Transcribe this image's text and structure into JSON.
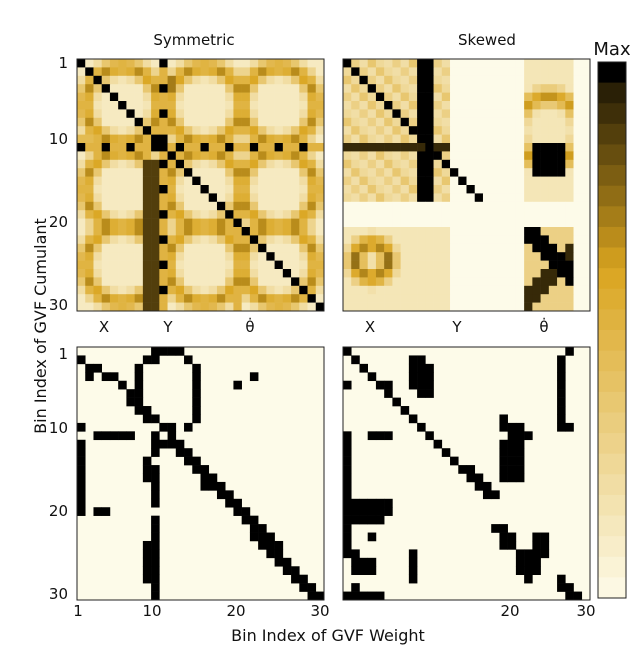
{
  "chart_data": {
    "type": "heatmap",
    "titles": [
      "Symmetric",
      "Skewed"
    ],
    "xlabel": "Bin Index of GVF Weight",
    "ylabel": "Bin Index of GVF Cumulant",
    "y_ticks": [
      "1",
      "10",
      "20",
      "30"
    ],
    "x_ticks": [
      "1",
      "10",
      "20",
      "30"
    ],
    "group_labels": [
      "X",
      "Y",
      "θ̇"
    ],
    "colorbar_label": "Max",
    "colors": {
      "low": "#fdfbe9",
      "high": "#000000"
    },
    "panels": [
      {
        "name": "symmetric-weights",
        "grid_size": 30,
        "pattern": "symmetric",
        "binary": false
      },
      {
        "name": "skewed-weights",
        "grid_size": 30,
        "pattern": "skewed",
        "binary": false
      },
      {
        "name": "symmetric-mask",
        "grid_size": 30,
        "binary": true,
        "black_cells": [
          [
            1,
            10
          ],
          [
            1,
            11
          ],
          [
            1,
            12
          ],
          [
            1,
            13
          ],
          [
            2,
            1
          ],
          [
            2,
            9
          ],
          [
            2,
            10
          ],
          [
            2,
            14
          ],
          [
            3,
            2
          ],
          [
            3,
            3
          ],
          [
            3,
            8
          ],
          [
            3,
            15
          ],
          [
            4,
            2
          ],
          [
            4,
            4
          ],
          [
            4,
            5
          ],
          [
            4,
            8
          ],
          [
            4,
            15
          ],
          [
            4,
            22
          ],
          [
            5,
            6
          ],
          [
            5,
            8
          ],
          [
            5,
            15
          ],
          [
            5,
            20
          ],
          [
            6,
            7
          ],
          [
            6,
            8
          ],
          [
            6,
            15
          ],
          [
            7,
            7
          ],
          [
            7,
            8
          ],
          [
            7,
            15
          ],
          [
            8,
            8
          ],
          [
            8,
            9
          ],
          [
            8,
            15
          ],
          [
            9,
            9
          ],
          [
            9,
            10
          ],
          [
            9,
            15
          ],
          [
            10,
            1
          ],
          [
            10,
            11
          ],
          [
            10,
            12
          ],
          [
            10,
            14
          ],
          [
            11,
            3
          ],
          [
            11,
            4
          ],
          [
            11,
            5
          ],
          [
            11,
            6
          ],
          [
            11,
            7
          ],
          [
            11,
            10
          ],
          [
            11,
            12
          ],
          [
            12,
            1
          ],
          [
            12,
            10
          ],
          [
            12,
            11
          ],
          [
            12,
            12
          ],
          [
            12,
            13
          ],
          [
            13,
            1
          ],
          [
            13,
            10
          ],
          [
            13,
            13
          ],
          [
            13,
            14
          ],
          [
            14,
            1
          ],
          [
            14,
            9
          ],
          [
            14,
            14
          ],
          [
            14,
            15
          ],
          [
            15,
            1
          ],
          [
            15,
            9
          ],
          [
            15,
            10
          ],
          [
            15,
            15
          ],
          [
            15,
            16
          ],
          [
            16,
            1
          ],
          [
            16,
            9
          ],
          [
            16,
            10
          ],
          [
            16,
            16
          ],
          [
            16,
            17
          ],
          [
            17,
            1
          ],
          [
            17,
            10
          ],
          [
            17,
            16
          ],
          [
            17,
            17
          ],
          [
            17,
            18
          ],
          [
            18,
            1
          ],
          [
            18,
            10
          ],
          [
            18,
            18
          ],
          [
            18,
            19
          ],
          [
            19,
            1
          ],
          [
            19,
            10
          ],
          [
            19,
            19
          ],
          [
            19,
            20
          ],
          [
            20,
            1
          ],
          [
            20,
            3
          ],
          [
            20,
            4
          ],
          [
            20,
            20
          ],
          [
            20,
            21
          ],
          [
            21,
            10
          ],
          [
            21,
            21
          ],
          [
            21,
            22
          ],
          [
            22,
            10
          ],
          [
            22,
            22
          ],
          [
            22,
            23
          ],
          [
            23,
            10
          ],
          [
            23,
            22
          ],
          [
            23,
            23
          ],
          [
            23,
            24
          ],
          [
            24,
            9
          ],
          [
            24,
            10
          ],
          [
            24,
            23
          ],
          [
            24,
            24
          ],
          [
            24,
            25
          ],
          [
            25,
            9
          ],
          [
            25,
            10
          ],
          [
            25,
            24
          ],
          [
            25,
            25
          ],
          [
            26,
            9
          ],
          [
            26,
            10
          ],
          [
            26,
            25
          ],
          [
            26,
            26
          ],
          [
            27,
            9
          ],
          [
            27,
            10
          ],
          [
            27,
            26
          ],
          [
            27,
            27
          ],
          [
            28,
            9
          ],
          [
            28,
            10
          ],
          [
            28,
            27
          ],
          [
            28,
            28
          ],
          [
            29,
            10
          ],
          [
            29,
            28
          ],
          [
            29,
            29
          ],
          [
            30,
            10
          ],
          [
            30,
            29
          ],
          [
            30,
            30
          ]
        ]
      },
      {
        "name": "skewed-mask",
        "grid_size": 30,
        "binary": true,
        "black_cells": [
          [
            1,
            1
          ],
          [
            1,
            28
          ],
          [
            2,
            2
          ],
          [
            2,
            9
          ],
          [
            2,
            10
          ],
          [
            2,
            27
          ],
          [
            3,
            3
          ],
          [
            3,
            9
          ],
          [
            3,
            10
          ],
          [
            3,
            11
          ],
          [
            3,
            27
          ],
          [
            4,
            4
          ],
          [
            4,
            9
          ],
          [
            4,
            10
          ],
          [
            4,
            11
          ],
          [
            4,
            27
          ],
          [
            5,
            1
          ],
          [
            5,
            5
          ],
          [
            5,
            6
          ],
          [
            5,
            9
          ],
          [
            5,
            10
          ],
          [
            5,
            11
          ],
          [
            5,
            27
          ],
          [
            6,
            6
          ],
          [
            6,
            10
          ],
          [
            6,
            11
          ],
          [
            6,
            27
          ],
          [
            7,
            7
          ],
          [
            7,
            27
          ],
          [
            8,
            8
          ],
          [
            8,
            27
          ],
          [
            9,
            9
          ],
          [
            9,
            20
          ],
          [
            9,
            27
          ],
          [
            10,
            10
          ],
          [
            10,
            20
          ],
          [
            10,
            21
          ],
          [
            10,
            22
          ],
          [
            10,
            27
          ],
          [
            10,
            28
          ],
          [
            11,
            1
          ],
          [
            11,
            4
          ],
          [
            11,
            5
          ],
          [
            11,
            6
          ],
          [
            11,
            11
          ],
          [
            11,
            21
          ],
          [
            11,
            22
          ],
          [
            11,
            23
          ],
          [
            12,
            1
          ],
          [
            12,
            12
          ],
          [
            12,
            20
          ],
          [
            12,
            21
          ],
          [
            12,
            22
          ],
          [
            13,
            1
          ],
          [
            13,
            13
          ],
          [
            13,
            20
          ],
          [
            13,
            21
          ],
          [
            13,
            22
          ],
          [
            14,
            1
          ],
          [
            14,
            14
          ],
          [
            14,
            20
          ],
          [
            14,
            21
          ],
          [
            14,
            22
          ],
          [
            15,
            1
          ],
          [
            15,
            15
          ],
          [
            15,
            16
          ],
          [
            15,
            20
          ],
          [
            15,
            21
          ],
          [
            15,
            22
          ],
          [
            16,
            1
          ],
          [
            16,
            16
          ],
          [
            16,
            17
          ],
          [
            16,
            20
          ],
          [
            16,
            21
          ],
          [
            16,
            22
          ],
          [
            17,
            1
          ],
          [
            17,
            17
          ],
          [
            17,
            18
          ],
          [
            18,
            1
          ],
          [
            18,
            18
          ],
          [
            18,
            19
          ],
          [
            19,
            1
          ],
          [
            19,
            2
          ],
          [
            19,
            3
          ],
          [
            19,
            4
          ],
          [
            19,
            5
          ],
          [
            19,
            6
          ],
          [
            20,
            1
          ],
          [
            20,
            2
          ],
          [
            20,
            3
          ],
          [
            20,
            4
          ],
          [
            20,
            5
          ],
          [
            20,
            6
          ],
          [
            21,
            1
          ],
          [
            21,
            2
          ],
          [
            21,
            3
          ],
          [
            21,
            4
          ],
          [
            21,
            5
          ],
          [
            22,
            1
          ],
          [
            22,
            19
          ],
          [
            22,
            20
          ],
          [
            23,
            1
          ],
          [
            23,
            4
          ],
          [
            23,
            20
          ],
          [
            23,
            21
          ],
          [
            23,
            24
          ],
          [
            23,
            25
          ],
          [
            24,
            1
          ],
          [
            24,
            20
          ],
          [
            24,
            21
          ],
          [
            24,
            24
          ],
          [
            24,
            25
          ],
          [
            25,
            1
          ],
          [
            25,
            2
          ],
          [
            25,
            9
          ],
          [
            25,
            22
          ],
          [
            25,
            23
          ],
          [
            25,
            24
          ],
          [
            25,
            25
          ],
          [
            26,
            2
          ],
          [
            26,
            3
          ],
          [
            26,
            4
          ],
          [
            26,
            9
          ],
          [
            26,
            22
          ],
          [
            26,
            23
          ],
          [
            26,
            24
          ],
          [
            27,
            2
          ],
          [
            27,
            3
          ],
          [
            27,
            4
          ],
          [
            27,
            9
          ],
          [
            27,
            22
          ],
          [
            27,
            23
          ],
          [
            27,
            24
          ],
          [
            28,
            9
          ],
          [
            28,
            23
          ],
          [
            28,
            27
          ],
          [
            29,
            2
          ],
          [
            29,
            27
          ],
          [
            29,
            28
          ],
          [
            30,
            1
          ],
          [
            30,
            2
          ],
          [
            30,
            3
          ],
          [
            30,
            4
          ],
          [
            30,
            5
          ],
          [
            30,
            28
          ],
          [
            30,
            29
          ]
        ]
      }
    ]
  }
}
